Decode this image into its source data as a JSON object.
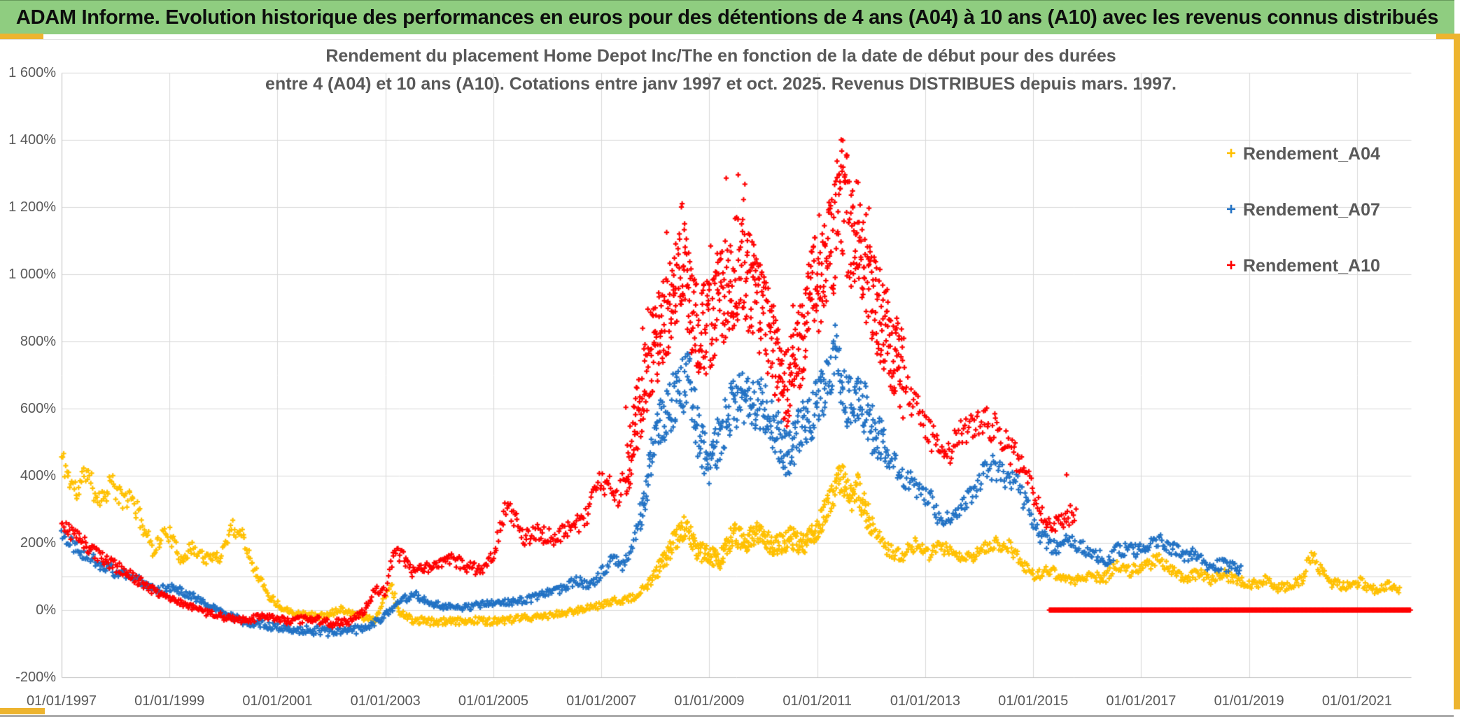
{
  "title_bar": {
    "text": "ADAM Informe. Evolution historique des performances en euros pour des détentions de 4 ans (A04) à 10 ans (A10) avec les revenus connus distribués"
  },
  "colors": {
    "title_bar_bg": "#8FCD80",
    "accent_gold": "#EDB42F",
    "axis_text": "#595959",
    "gridline": "#D9D9D9",
    "axis_line": "#BFBFBF",
    "series_a04": "#FFC000",
    "series_a07": "#2272C4",
    "series_a10": "#FF0000"
  },
  "chart_data": {
    "type": "scatter",
    "title_line1": "Rendement du placement Home Depot Inc/The en fonction de la date de début pour des durées",
    "title_line2": "entre 4 (A04) et 10 ans (A10). Cotations entre janv 1997 et oct. 2025. Revenus DISTRIBUES depuis mars. 1997.",
    "grid": true,
    "legend_position": "top-right-inside",
    "marker_glyph": "+",
    "x_axis": {
      "type": "date",
      "min_year": 1997.0,
      "max_year": 2022.0,
      "tick_years": [
        1997,
        1999,
        2001,
        2003,
        2005,
        2007,
        2009,
        2011,
        2013,
        2015,
        2017,
        2019,
        2021
      ],
      "labels": [
        "01/01/1997",
        "01/01/1999",
        "01/01/2001",
        "01/01/2003",
        "01/01/2005",
        "01/01/2007",
        "01/01/2009",
        "01/01/2011",
        "01/01/2013",
        "01/01/2015",
        "01/01/2017",
        "01/01/2019",
        "01/01/2021"
      ]
    },
    "y_axis": {
      "unit": "%",
      "min": -200,
      "max": 1600,
      "step": 200,
      "tick_values": [
        1600,
        1400,
        1200,
        1000,
        800,
        600,
        400,
        200,
        0,
        -200
      ],
      "tick_labels": [
        "1 600%",
        "1 400%",
        "1 200%",
        "1 000%",
        "800%",
        "600%",
        "400%",
        "200%",
        "0%",
        "-200%"
      ],
      "extra_gridline_value": 100
    },
    "series": [
      {
        "name": "Rendement_A04",
        "color": "#FFC000",
        "start": 1997.0,
        "end": 2021.8,
        "spread_window": [
          2008.0,
          2012.0
        ],
        "spread": [
          14,
          0.09
        ],
        "keyframes": [
          [
            1997.0,
            455
          ],
          [
            1997.15,
            390
          ],
          [
            1997.3,
            345
          ],
          [
            1997.45,
            420
          ],
          [
            1997.6,
            355
          ],
          [
            1997.75,
            330
          ],
          [
            1997.9,
            385
          ],
          [
            1998.1,
            330
          ],
          [
            1998.3,
            335
          ],
          [
            1998.5,
            255
          ],
          [
            1998.7,
            180
          ],
          [
            1998.95,
            240
          ],
          [
            1999.2,
            155
          ],
          [
            1999.45,
            185
          ],
          [
            1999.7,
            150
          ],
          [
            1999.95,
            165
          ],
          [
            2000.15,
            250
          ],
          [
            2000.35,
            225
          ],
          [
            2000.6,
            115
          ],
          [
            2000.85,
            40
          ],
          [
            2001.1,
            5
          ],
          [
            2001.5,
            -15
          ],
          [
            2001.9,
            -20
          ],
          [
            2002.15,
            5
          ],
          [
            2002.5,
            -15
          ],
          [
            2002.8,
            -30
          ],
          [
            2003.0,
            40
          ],
          [
            2003.1,
            80
          ],
          [
            2003.25,
            -5
          ],
          [
            2003.5,
            -30
          ],
          [
            2003.9,
            -35
          ],
          [
            2004.3,
            -35
          ],
          [
            2004.7,
            -30
          ],
          [
            2005.1,
            -35
          ],
          [
            2005.5,
            -25
          ],
          [
            2005.9,
            -20
          ],
          [
            2006.3,
            -10
          ],
          [
            2006.7,
            5
          ],
          [
            2007.0,
            15
          ],
          [
            2007.3,
            30
          ],
          [
            2007.6,
            35
          ],
          [
            2007.85,
            70
          ],
          [
            2008.1,
            130
          ],
          [
            2008.35,
            205
          ],
          [
            2008.55,
            250
          ],
          [
            2008.75,
            185
          ],
          [
            2009.0,
            160
          ],
          [
            2009.2,
            150
          ],
          [
            2009.45,
            225
          ],
          [
            2009.7,
            205
          ],
          [
            2009.95,
            235
          ],
          [
            2010.2,
            185
          ],
          [
            2010.5,
            215
          ],
          [
            2010.75,
            195
          ],
          [
            2011.0,
            240
          ],
          [
            2011.2,
            310
          ],
          [
            2011.45,
            405
          ],
          [
            2011.6,
            330
          ],
          [
            2011.75,
            365
          ],
          [
            2011.9,
            290
          ],
          [
            2012.1,
            230
          ],
          [
            2012.3,
            180
          ],
          [
            2012.55,
            160
          ],
          [
            2012.8,
            195
          ],
          [
            2013.05,
            160
          ],
          [
            2013.3,
            190
          ],
          [
            2013.55,
            170
          ],
          [
            2013.8,
            155
          ],
          [
            2014.05,
            175
          ],
          [
            2014.3,
            200
          ],
          [
            2014.55,
            190
          ],
          [
            2014.8,
            140
          ],
          [
            2015.05,
            100
          ],
          [
            2015.3,
            120
          ],
          [
            2015.55,
            90
          ],
          [
            2015.8,
            85
          ],
          [
            2016.05,
            110
          ],
          [
            2016.3,
            90
          ],
          [
            2016.55,
            135
          ],
          [
            2016.8,
            115
          ],
          [
            2017.05,
            130
          ],
          [
            2017.3,
            150
          ],
          [
            2017.55,
            120
          ],
          [
            2017.8,
            95
          ],
          [
            2018.05,
            110
          ],
          [
            2018.3,
            90
          ],
          [
            2018.55,
            105
          ],
          [
            2018.8,
            85
          ],
          [
            2019.05,
            75
          ],
          [
            2019.3,
            90
          ],
          [
            2019.55,
            65
          ],
          [
            2019.8,
            75
          ],
          [
            2020.0,
            95
          ],
          [
            2020.15,
            165
          ],
          [
            2020.35,
            115
          ],
          [
            2020.55,
            80
          ],
          [
            2020.8,
            70
          ],
          [
            2021.05,
            85
          ],
          [
            2021.3,
            60
          ],
          [
            2021.55,
            75
          ],
          [
            2021.8,
            55
          ]
        ]
      },
      {
        "name": "Rendement_A07",
        "color": "#2272C4",
        "start": 1997.0,
        "end": 2018.85,
        "spread_window": [
          2007.7,
          2012.3
        ],
        "spread": [
          20,
          0.1
        ],
        "keyframes": [
          [
            1997.0,
            230
          ],
          [
            1997.3,
            185
          ],
          [
            1997.6,
            150
          ],
          [
            1997.9,
            120
          ],
          [
            1998.2,
            100
          ],
          [
            1998.5,
            85
          ],
          [
            1998.8,
            60
          ],
          [
            1999.1,
            65
          ],
          [
            1999.4,
            45
          ],
          [
            1999.7,
            15
          ],
          [
            2000.0,
            -10
          ],
          [
            2000.4,
            -35
          ],
          [
            2000.8,
            -45
          ],
          [
            2001.2,
            -55
          ],
          [
            2001.6,
            -60
          ],
          [
            2002.0,
            -65
          ],
          [
            2002.4,
            -60
          ],
          [
            2002.7,
            -50
          ],
          [
            2003.0,
            -15
          ],
          [
            2003.3,
            30
          ],
          [
            2003.55,
            45
          ],
          [
            2003.8,
            25
          ],
          [
            2004.1,
            10
          ],
          [
            2004.4,
            5
          ],
          [
            2004.7,
            15
          ],
          [
            2005.0,
            20
          ],
          [
            2005.35,
            25
          ],
          [
            2005.7,
            35
          ],
          [
            2006.0,
            50
          ],
          [
            2006.3,
            65
          ],
          [
            2006.55,
            90
          ],
          [
            2006.8,
            75
          ],
          [
            2007.0,
            110
          ],
          [
            2007.2,
            150
          ],
          [
            2007.4,
            135
          ],
          [
            2007.6,
            200
          ],
          [
            2007.8,
            330
          ],
          [
            2008.0,
            520
          ],
          [
            2008.2,
            590
          ],
          [
            2008.4,
            640
          ],
          [
            2008.6,
            700
          ],
          [
            2008.8,
            520
          ],
          [
            2009.0,
            430
          ],
          [
            2009.2,
            520
          ],
          [
            2009.4,
            600
          ],
          [
            2009.6,
            640
          ],
          [
            2009.8,
            600
          ],
          [
            2010.0,
            620
          ],
          [
            2010.2,
            540
          ],
          [
            2010.45,
            460
          ],
          [
            2010.7,
            540
          ],
          [
            2010.9,
            580
          ],
          [
            2011.1,
            640
          ],
          [
            2011.35,
            780
          ],
          [
            2011.5,
            640
          ],
          [
            2011.65,
            600
          ],
          [
            2011.8,
            640
          ],
          [
            2012.0,
            540
          ],
          [
            2012.2,
            500
          ],
          [
            2012.45,
            430
          ],
          [
            2012.7,
            380
          ],
          [
            2012.9,
            360
          ],
          [
            2013.1,
            330
          ],
          [
            2013.3,
            250
          ],
          [
            2013.55,
            300
          ],
          [
            2013.8,
            330
          ],
          [
            2014.0,
            390
          ],
          [
            2014.2,
            430
          ],
          [
            2014.45,
            400
          ],
          [
            2014.7,
            370
          ],
          [
            2014.9,
            300
          ],
          [
            2015.1,
            230
          ],
          [
            2015.35,
            185
          ],
          [
            2015.6,
            200
          ],
          [
            2015.85,
            195
          ],
          [
            2016.1,
            170
          ],
          [
            2016.35,
            150
          ],
          [
            2016.6,
            180
          ],
          [
            2016.85,
            175
          ],
          [
            2017.1,
            195
          ],
          [
            2017.3,
            210
          ],
          [
            2017.55,
            185
          ],
          [
            2017.8,
            160
          ],
          [
            2018.0,
            170
          ],
          [
            2018.25,
            130
          ],
          [
            2018.5,
            135
          ],
          [
            2018.85,
            120
          ]
        ]
      },
      {
        "name": "Rendement_A10",
        "color": "#FF0000",
        "start": 1997.0,
        "end": 2015.8,
        "spread_window": [
          2007.45,
          2012.6
        ],
        "spread": [
          30,
          0.13
        ],
        "spike_p": 0.06,
        "spike_amp": 210,
        "zero_plateau": [
          2015.3,
          2022.0
        ],
        "outliers": [
          [
            2015.62,
            403
          ]
        ],
        "keyframes": [
          [
            1997.0,
            255
          ],
          [
            1997.3,
            215
          ],
          [
            1997.6,
            175
          ],
          [
            1997.9,
            140
          ],
          [
            1998.2,
            110
          ],
          [
            1998.5,
            80
          ],
          [
            1998.8,
            50
          ],
          [
            1999.1,
            30
          ],
          [
            1999.4,
            10
          ],
          [
            1999.7,
            -10
          ],
          [
            2000.0,
            -20
          ],
          [
            2000.4,
            -30
          ],
          [
            2000.8,
            -20
          ],
          [
            2001.2,
            -35
          ],
          [
            2001.6,
            -25
          ],
          [
            2002.0,
            -40
          ],
          [
            2002.3,
            -35
          ],
          [
            2002.6,
            -5
          ],
          [
            2002.8,
            60
          ],
          [
            2003.0,
            55
          ],
          [
            2003.15,
            170
          ],
          [
            2003.3,
            160
          ],
          [
            2003.5,
            115
          ],
          [
            2003.75,
            125
          ],
          [
            2004.0,
            140
          ],
          [
            2004.25,
            150
          ],
          [
            2004.5,
            130
          ],
          [
            2004.75,
            120
          ],
          [
            2005.0,
            160
          ],
          [
            2005.2,
            300
          ],
          [
            2005.35,
            290
          ],
          [
            2005.55,
            215
          ],
          [
            2005.8,
            230
          ],
          [
            2006.1,
            215
          ],
          [
            2006.4,
            240
          ],
          [
            2006.7,
            270
          ],
          [
            2006.95,
            380
          ],
          [
            2007.15,
            370
          ],
          [
            2007.3,
            330
          ],
          [
            2007.5,
            430
          ],
          [
            2007.7,
            600
          ],
          [
            2007.9,
            760
          ],
          [
            2008.1,
            830
          ],
          [
            2008.3,
            920
          ],
          [
            2008.5,
            1060
          ],
          [
            2008.65,
            900
          ],
          [
            2008.8,
            820
          ],
          [
            2009.0,
            850
          ],
          [
            2009.2,
            920
          ],
          [
            2009.4,
            990
          ],
          [
            2009.6,
            1030
          ],
          [
            2009.8,
            960
          ],
          [
            2010.0,
            880
          ],
          [
            2010.2,
            760
          ],
          [
            2010.45,
            660
          ],
          [
            2010.7,
            790
          ],
          [
            2010.9,
            940
          ],
          [
            2011.1,
            1010
          ],
          [
            2011.3,
            1100
          ],
          [
            2011.45,
            1230
          ],
          [
            2011.6,
            1150
          ],
          [
            2011.8,
            1090
          ],
          [
            2012.0,
            950
          ],
          [
            2012.2,
            860
          ],
          [
            2012.45,
            760
          ],
          [
            2012.7,
            640
          ],
          [
            2012.9,
            590
          ],
          [
            2013.1,
            520
          ],
          [
            2013.35,
            450
          ],
          [
            2013.6,
            510
          ],
          [
            2013.85,
            550
          ],
          [
            2014.1,
            575
          ],
          [
            2014.35,
            530
          ],
          [
            2014.6,
            470
          ],
          [
            2014.85,
            430
          ],
          [
            2015.05,
            330
          ],
          [
            2015.25,
            245
          ],
          [
            2015.45,
            255
          ],
          [
            2015.65,
            280
          ],
          [
            2015.8,
            290
          ]
        ]
      }
    ]
  }
}
